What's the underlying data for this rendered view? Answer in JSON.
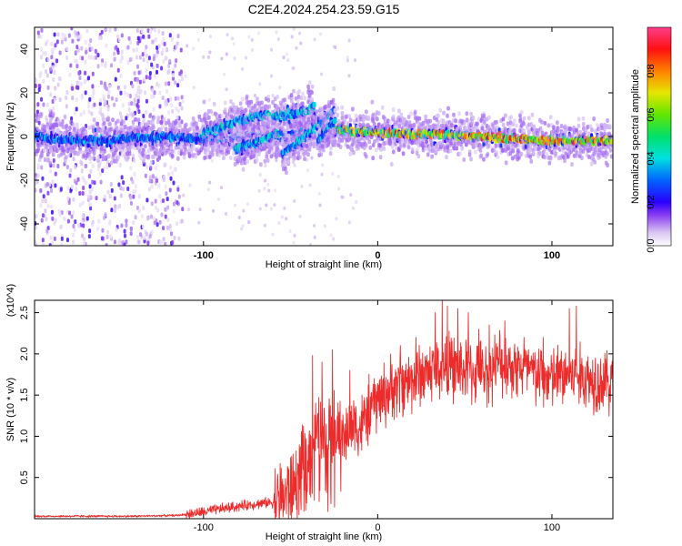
{
  "figure": {
    "title": "C2E4.2024.254.23.59.G15"
  },
  "chart_data": [
    {
      "type": "heatmap",
      "xlabel": "Height of straight line (km)",
      "ylabel": "Frequency (Hz)",
      "xlim": [
        -197,
        135
      ],
      "ylim": [
        -50,
        50
      ],
      "xticks": [
        -100,
        0,
        100
      ],
      "yticks": [
        -40,
        -20,
        0,
        20,
        40
      ],
      "grid": false,
      "colorbar": {
        "label": "Normalized spectral amplitude",
        "range": [
          0.0,
          1.0
        ],
        "ticks": [
          0.0,
          0.2,
          0.4,
          0.6,
          0.8
        ],
        "colors": [
          "#ffffff",
          "#d9c6f2",
          "#8a3cf2",
          "#2a00ff",
          "#0064ff",
          "#00e0e0",
          "#00e06a",
          "#62e600",
          "#e6e600",
          "#ff8000",
          "#ff1010",
          "#ff3c8c"
        ]
      },
      "traces": [
        {
          "name": "",
          "x": [
            -197,
            -170,
            -140,
            -120,
            -110,
            -100,
            -90,
            -80,
            -70,
            -60,
            -50,
            -40,
            -30,
            -20,
            -10,
            0,
            20,
            40,
            60,
            80,
            100,
            120,
            135
          ],
          "y": [
            0,
            -2,
            -1,
            0,
            -1,
            -1,
            -1,
            0,
            0,
            0,
            1,
            2,
            3,
            3,
            2,
            2,
            1,
            1,
            0,
            -1,
            -2,
            -2,
            -2
          ]
        },
        {
          "name": "",
          "x": [
            -100,
            -90,
            -80,
            -70,
            -62
          ],
          "y": [
            2,
            4,
            7,
            9,
            10
          ]
        },
        {
          "name": "",
          "x": [
            -82,
            -75,
            -68,
            -62,
            -55
          ],
          "y": [
            -6,
            -4,
            -2,
            0,
            2
          ]
        },
        {
          "name": "",
          "x": [
            -60,
            -52,
            -45,
            -40,
            -36
          ],
          "y": [
            9,
            10,
            11,
            12,
            14
          ]
        },
        {
          "name": "",
          "x": [
            -55,
            -48,
            -42,
            -36,
            -30,
            -25
          ],
          "y": [
            -8,
            -4,
            0,
            4,
            8,
            12
          ]
        },
        {
          "name": "",
          "x": [
            -34,
            -30,
            -27,
            -24
          ],
          "y": [
            -2,
            2,
            5,
            8
          ]
        }
      ]
    },
    {
      "type": "line",
      "xlabel": "Height of straight line (km)",
      "ylabel": "SNR (10 * v/v)",
      "y_multiplier": "(x10^4)",
      "xlim": [
        -197,
        135
      ],
      "ylim": [
        0,
        2.65
      ],
      "xticks": [
        -100,
        0,
        100
      ],
      "yticks": [
        0.5,
        1.0,
        1.5,
        2.0,
        2.5
      ],
      "ytick_labels": [
        "0.5",
        "1.0",
        "1.5",
        "2.0",
        "2.5"
      ],
      "color": "#ee2b2b",
      "grid": false,
      "series": [
        {
          "name": "",
          "x": [
            -197,
            -170,
            -140,
            -115,
            -100,
            -90,
            -80,
            -70,
            -60,
            -55,
            -50,
            -45,
            -40,
            -35,
            -30,
            -25,
            -20,
            -15,
            -10,
            -5,
            0,
            10,
            20,
            30,
            40,
            50,
            60,
            70,
            80,
            90,
            100,
            110,
            120,
            135
          ],
          "y": [
            0.03,
            0.03,
            0.03,
            0.04,
            0.08,
            0.12,
            0.15,
            0.18,
            0.2,
            0.26,
            0.35,
            0.5,
            0.75,
            1.1,
            0.95,
            1.2,
            0.85,
            1.2,
            1.1,
            1.3,
            1.45,
            1.6,
            1.7,
            1.8,
            1.85,
            1.8,
            1.75,
            1.9,
            1.85,
            1.75,
            1.7,
            1.75,
            1.7,
            1.65
          ]
        }
      ],
      "spikes": [
        {
          "x": -37.5,
          "y": 1.98
        },
        {
          "x": -32,
          "y": 1.9
        },
        {
          "x": -26,
          "y": 2.05
        },
        {
          "x": -16,
          "y": 1.8
        },
        {
          "x": -2,
          "y": 1.7
        },
        {
          "x": 13,
          "y": 2.1
        },
        {
          "x": 22,
          "y": 2.2
        },
        {
          "x": 33,
          "y": 2.5
        },
        {
          "x": 37,
          "y": 2.7
        },
        {
          "x": 40,
          "y": 2.58
        },
        {
          "x": 46,
          "y": 2.55
        },
        {
          "x": 52,
          "y": 2.5
        },
        {
          "x": 58,
          "y": 2.3
        },
        {
          "x": 64,
          "y": 2.35
        },
        {
          "x": 73,
          "y": 2.4
        },
        {
          "x": 84,
          "y": 2.2
        },
        {
          "x": 95,
          "y": 2.2
        },
        {
          "x": 110,
          "y": 2.55
        },
        {
          "x": 114,
          "y": 2.58
        },
        {
          "x": 125,
          "y": 1.95
        },
        {
          "x": 131,
          "y": 1.9
        }
      ]
    }
  ]
}
